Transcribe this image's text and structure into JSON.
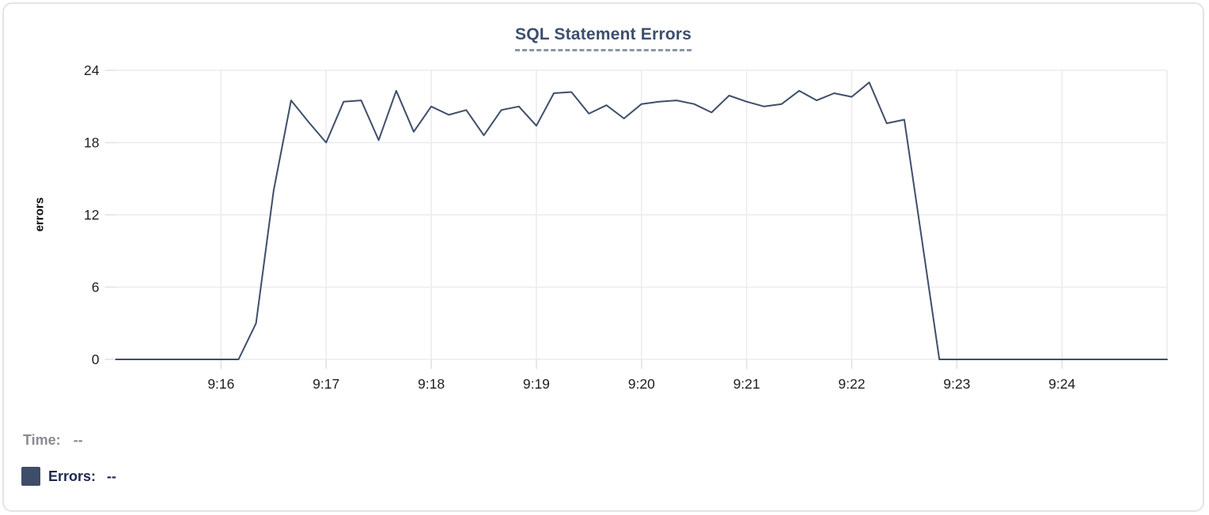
{
  "panel": {
    "background": "#ffffff",
    "border_color": "#e3e4e8"
  },
  "chart_data": {
    "type": "line",
    "title": "SQL Statement Errors",
    "xlabel": "",
    "ylabel": "errors",
    "grid": true,
    "ylim": [
      0,
      24
    ],
    "y_ticks": [
      0,
      6,
      12,
      18,
      24
    ],
    "x_domain_seconds": [
      0,
      600
    ],
    "x_domain_time": [
      "9:15:00",
      "9:25:00"
    ],
    "x_ticks": [
      {
        "label": "9:16",
        "seconds": 60
      },
      {
        "label": "9:17",
        "seconds": 120
      },
      {
        "label": "9:18",
        "seconds": 180
      },
      {
        "label": "9:19",
        "seconds": 240
      },
      {
        "label": "9:20",
        "seconds": 300
      },
      {
        "label": "9:21",
        "seconds": 360
      },
      {
        "label": "9:22",
        "seconds": 420
      },
      {
        "label": "9:23",
        "seconds": 480
      },
      {
        "label": "9:24",
        "seconds": 540
      }
    ],
    "extra_gridlines_seconds": [
      600
    ],
    "series": [
      {
        "name": "Errors",
        "color": "#3f4e6a",
        "start_time": "9:15:00",
        "interval_seconds": 10,
        "values": [
          0,
          0,
          0,
          0,
          0,
          0,
          0,
          0,
          3,
          14,
          21.5,
          19.7,
          18,
          21.4,
          21.5,
          18.2,
          22.3,
          18.9,
          21,
          20.3,
          20.7,
          18.6,
          20.7,
          21,
          19.4,
          22.1,
          22.2,
          20.4,
          21.1,
          20,
          21.2,
          21.4,
          21.5,
          21.2,
          20.5,
          21.9,
          21.4,
          21,
          21.2,
          22.3,
          21.5,
          22.1,
          21.8,
          23,
          19.6,
          19.9,
          10,
          0,
          0,
          0,
          0,
          0,
          0,
          0,
          0,
          0,
          0,
          0,
          0,
          0,
          0
        ]
      }
    ],
    "legend_position": "bottom-left"
  },
  "legend": {
    "time_label": "Time:",
    "time_value": "--",
    "errors_label": "Errors:",
    "errors_value": "--",
    "swatch_color": "#3e4d68"
  },
  "colors": {
    "title": "#3c4e6e",
    "title_underline": "#8b95ab",
    "line": "#3f4e6a",
    "gridline": "#ececf0",
    "tick_mark": "#e2e2e7",
    "axis_text": "#1e1e21",
    "legend_time_text": "#8a8b91",
    "legend_errors_text": "#1d2951"
  }
}
